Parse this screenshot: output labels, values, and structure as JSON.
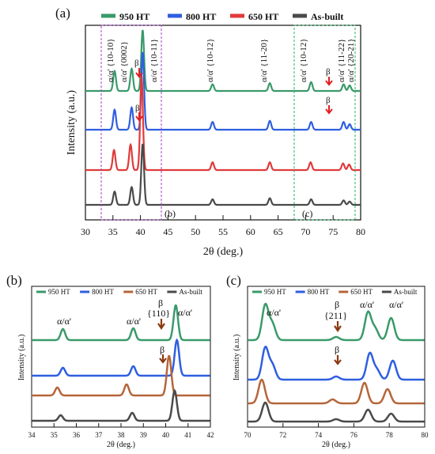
{
  "colors": {
    "950 HT": "#3a9a6a",
    "800 HT": "#2f5fe0",
    "650 HT": "#e03a3a",
    "650 HT (b,c)": "#b5653a",
    "As-built": "#4a4a4a",
    "arrow_a": "#e02020",
    "arrow_bc": "#8a3a10",
    "box_b": "#a040c0",
    "box_c": "#2ab060"
  },
  "chart_data": [
    {
      "panel": "(a)",
      "type": "line",
      "xlabel": "2θ (deg.)",
      "ylabel": "Intensity (a.u.)",
      "xlim": [
        30,
        80
      ],
      "xticks": [
        "30",
        "35",
        "40",
        "45",
        "50",
        "55",
        "60",
        "65",
        "70",
        "75",
        "80"
      ],
      "legend": [
        "950 HT",
        "800 HT",
        "650 HT",
        "As-built"
      ],
      "legend_position": "top",
      "series": [
        {
          "name": "950 HT",
          "peaks": [
            [
              35.3,
              0.18
            ],
            [
              38.4,
              0.2
            ],
            [
              40.4,
              0.55
            ],
            [
              53.1,
              0.06
            ],
            [
              63.5,
              0.07
            ],
            [
              71,
              0.08
            ],
            [
              76.9,
              0.06
            ],
            [
              78,
              0.05
            ]
          ]
        },
        {
          "name": "800 HT",
          "peaks": [
            [
              35.3,
              0.18
            ],
            [
              38.4,
              0.2
            ],
            [
              40.4,
              0.7
            ],
            [
              53.1,
              0.07
            ],
            [
              63.5,
              0.08
            ],
            [
              71,
              0.07
            ],
            [
              76.9,
              0.07
            ],
            [
              78,
              0.05
            ]
          ]
        },
        {
          "name": "650 HT",
          "peaks": [
            [
              35.2,
              0.18
            ],
            [
              38.2,
              0.23
            ],
            [
              40.2,
              0.85
            ],
            [
              53.1,
              0.07
            ],
            [
              63.5,
              0.07
            ],
            [
              70.9,
              0.07
            ],
            [
              76.8,
              0.06
            ],
            [
              77.9,
              0.05
            ]
          ]
        },
        {
          "name": "As-built",
          "peaks": [
            [
              35.3,
              0.12
            ],
            [
              38.4,
              0.16
            ],
            [
              40.4,
              0.55
            ],
            [
              53.1,
              0.05
            ],
            [
              63.5,
              0.06
            ],
            [
              71,
              0.05
            ],
            [
              76.9,
              0.04
            ],
            [
              78,
              0.03
            ]
          ]
        }
      ],
      "annotations": [
        "α/α' {10-10}",
        "α/α' {0002}",
        "β",
        "α/α' {10-11}",
        "α/α' {10-12}",
        "α/α' {11-20}",
        "α/α' {10-12}",
        "β",
        "α/α' {11-22}",
        "α/α' {20-21}",
        "β"
      ],
      "inset_labels": [
        "(b)",
        "(c)"
      ]
    },
    {
      "panel": "(b)",
      "type": "line",
      "xlabel": "2θ (deg.)",
      "ylabel": "Intensity (a.u.)",
      "xlim": [
        34,
        42
      ],
      "xticks": [
        "34",
        "35",
        "36",
        "37",
        "38",
        "39",
        "40",
        "41",
        "42"
      ],
      "legend": [
        "950 HT",
        "800 HT",
        "650 HT",
        "As-built"
      ],
      "annotations": [
        "α/α'",
        "α/α'",
        "β",
        "{110}",
        "α/α'",
        "β"
      ]
    },
    {
      "panel": "(c)",
      "type": "line",
      "xlabel": "2θ (deg.)",
      "ylabel": "Intensity (a.u.)",
      "xlim": [
        70,
        80
      ],
      "xticks": [
        "70",
        "72",
        "74",
        "76",
        "78",
        "80"
      ],
      "legend": [
        "950 HT",
        "800 HT",
        "650 HT",
        "As-built"
      ],
      "annotations": [
        "α/α'",
        "β",
        "{211}",
        "α/α'",
        "α/α'",
        "β"
      ]
    }
  ]
}
